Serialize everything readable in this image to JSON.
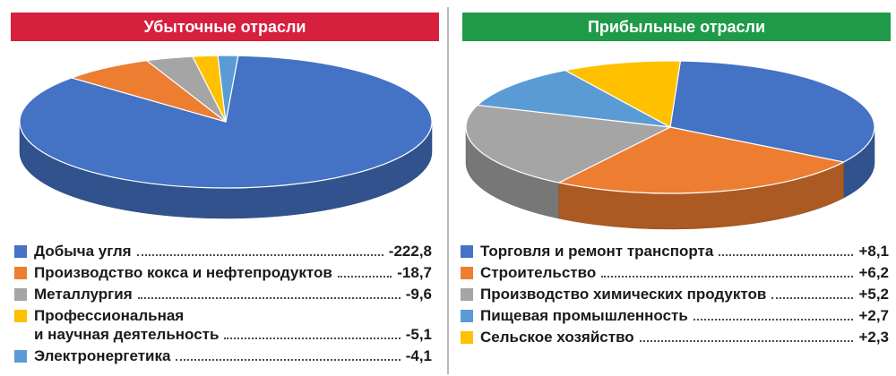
{
  "colors": {
    "losing_header": "#d71f3e",
    "profit_header": "#1f9a48",
    "blue": "#4472c4",
    "orange": "#ed7d31",
    "gray": "#a5a5a5",
    "yellow": "#ffc000",
    "light_blue": "#5b9bd5"
  },
  "chart_data": [
    {
      "type": "pie",
      "title": "Убыточные отрасли",
      "categories": [
        "Добыча угля",
        "Производство кокса и нефтепродуктов",
        "Металлургия",
        "Профессиональная и научная деятельность",
        "Электронергетика"
      ],
      "values": [
        -222.8,
        -18.7,
        -9.6,
        -5.1,
        -4.1
      ],
      "value_labels": [
        "-222,8",
        "-18,7",
        "-9,6",
        "-5,1",
        "-4,1"
      ],
      "colors": [
        "#4472c4",
        "#ed7d31",
        "#a5a5a5",
        "#ffc000",
        "#5b9bd5"
      ],
      "style": "3d-tilted",
      "legend": "bottom"
    },
    {
      "type": "pie",
      "title": "Прибыльные отрасли",
      "categories": [
        "Торговля и ремонт транспорта",
        "Строительство",
        "Производство химических продуктов",
        "Пищевая промышленность",
        "Сельское хозяйство"
      ],
      "values": [
        8.1,
        6.2,
        5.2,
        2.7,
        2.3
      ],
      "value_labels": [
        "+8,1",
        "+6,2",
        "+5,2",
        "+2,7",
        "+2,3"
      ],
      "colors": [
        "#4472c4",
        "#ed7d31",
        "#a5a5a5",
        "#5b9bd5",
        "#ffc000"
      ],
      "style": "3d-tilted",
      "legend": "bottom"
    }
  ],
  "legend_left": [
    {
      "lines": [
        "Добыча угля"
      ],
      "value": "-222,8"
    },
    {
      "lines": [
        "Производство кокса и нефтепродуктов"
      ],
      "value": "-18,7"
    },
    {
      "lines": [
        "Металлургия"
      ],
      "value": "-9,6"
    },
    {
      "lines": [
        "Профессиональная",
        "и научная деятельность"
      ],
      "value": "-5,1"
    },
    {
      "lines": [
        "Электронергетика"
      ],
      "value": "-4,1"
    }
  ],
  "legend_right": [
    {
      "lines": [
        "Торговля и ремонт транспорта"
      ],
      "value": "+8,1"
    },
    {
      "lines": [
        "Строительство"
      ],
      "value": "+6,2"
    },
    {
      "lines": [
        "Производство химических продуктов"
      ],
      "value": "+5,2"
    },
    {
      "lines": [
        "Пищевая промышленность"
      ],
      "value": "+2,7"
    },
    {
      "lines": [
        "Сельское хозяйство"
      ],
      "value": "+2,3"
    }
  ]
}
